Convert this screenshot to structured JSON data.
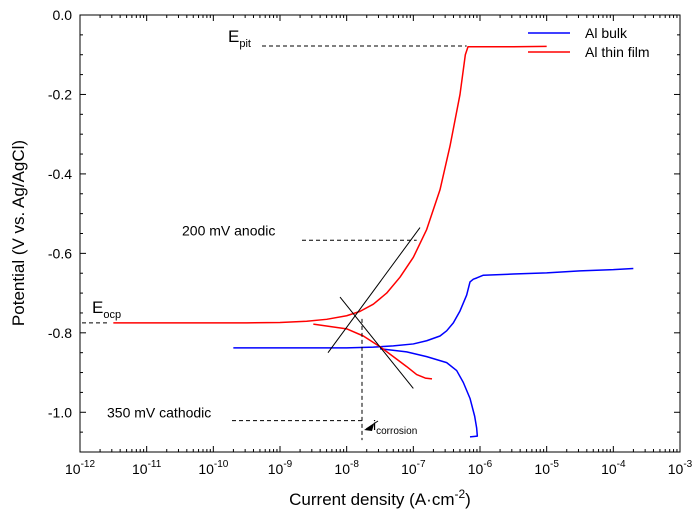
{
  "chart_data": {
    "type": "line",
    "xlabel": {
      "text": "Current density (A·cm",
      "sup": "-2",
      "tail": ")"
    },
    "ylabel": "Potential (V vs. Ag/AgCl)",
    "xscale": "log",
    "xlim_exp": [
      -12,
      -3
    ],
    "ylim": [
      -1.1,
      0.0
    ],
    "x_ticks": [
      {
        "base": "10",
        "exp": "-12"
      },
      {
        "base": "10",
        "exp": "-11"
      },
      {
        "base": "10",
        "exp": "-10"
      },
      {
        "base": "10",
        "exp": "-9"
      },
      {
        "base": "10",
        "exp": "-8"
      },
      {
        "base": "10",
        "exp": "-7"
      },
      {
        "base": "10",
        "exp": "-6"
      },
      {
        "base": "10",
        "exp": "-5"
      },
      {
        "base": "10",
        "exp": "-4"
      },
      {
        "base": "10",
        "exp": "-3"
      }
    ],
    "y_ticks": [
      "0.0",
      "-0.2",
      "-0.4",
      "-0.6",
      "-0.8",
      "-1.0"
    ],
    "y_tick_values": [
      0.0,
      -0.2,
      -0.4,
      -0.6,
      -0.8,
      -1.0
    ],
    "legend_position": "top-right",
    "series": [
      {
        "name": "Al bulk",
        "color": "#0000ff",
        "points": [
          [
            -9.7,
            -0.838
          ],
          [
            -9.0,
            -0.838
          ],
          [
            -8.5,
            -0.838
          ],
          [
            -8.0,
            -0.838
          ],
          [
            -7.6,
            -0.836
          ],
          [
            -7.3,
            -0.833
          ],
          [
            -7.0,
            -0.828
          ],
          [
            -6.8,
            -0.82
          ],
          [
            -6.6,
            -0.808
          ],
          [
            -6.5,
            -0.795
          ],
          [
            -6.4,
            -0.775
          ],
          [
            -6.3,
            -0.745
          ],
          [
            -6.2,
            -0.705
          ],
          [
            -6.15,
            -0.672
          ],
          [
            -6.1,
            -0.665
          ],
          [
            -6.05,
            -0.662
          ],
          [
            -5.95,
            -0.655
          ],
          [
            -5.5,
            -0.652
          ],
          [
            -5.0,
            -0.649
          ],
          [
            -4.5,
            -0.644
          ],
          [
            -4.0,
            -0.641
          ],
          [
            -3.7,
            -0.638
          ]
        ],
        "cathodic": [
          [
            -7.5,
            -0.84
          ],
          [
            -7.1,
            -0.848
          ],
          [
            -6.8,
            -0.86
          ],
          [
            -6.5,
            -0.875
          ],
          [
            -6.35,
            -0.895
          ],
          [
            -6.25,
            -0.925
          ],
          [
            -6.15,
            -0.965
          ],
          [
            -6.08,
            -1.01
          ],
          [
            -6.05,
            -1.04
          ],
          [
            -6.04,
            -1.06
          ],
          [
            -6.15,
            -1.062
          ]
        ]
      },
      {
        "name": "Al thin film",
        "color": "#ff0000",
        "points": [
          [
            -11.5,
            -0.775
          ],
          [
            -11.0,
            -0.775
          ],
          [
            -10.5,
            -0.775
          ],
          [
            -10.0,
            -0.775
          ],
          [
            -9.5,
            -0.775
          ],
          [
            -9.0,
            -0.774
          ],
          [
            -8.6,
            -0.771
          ],
          [
            -8.3,
            -0.766
          ],
          [
            -8.0,
            -0.757
          ],
          [
            -7.8,
            -0.746
          ],
          [
            -7.6,
            -0.728
          ],
          [
            -7.4,
            -0.7
          ],
          [
            -7.2,
            -0.66
          ],
          [
            -7.0,
            -0.61
          ],
          [
            -6.8,
            -0.54
          ],
          [
            -6.6,
            -0.44
          ],
          [
            -6.45,
            -0.33
          ],
          [
            -6.3,
            -0.2
          ],
          [
            -6.22,
            -0.1
          ],
          [
            -6.18,
            -0.08
          ],
          [
            -6.0,
            -0.08
          ],
          [
            -5.5,
            -0.08
          ],
          [
            -5.0,
            -0.079
          ]
        ],
        "cathodic": [
          [
            -8.5,
            -0.778
          ],
          [
            -8.0,
            -0.79
          ],
          [
            -7.75,
            -0.808
          ],
          [
            -7.5,
            -0.835
          ],
          [
            -7.3,
            -0.86
          ],
          [
            -7.1,
            -0.885
          ],
          [
            -6.95,
            -0.905
          ],
          [
            -6.82,
            -0.914
          ],
          [
            -6.72,
            -0.916
          ]
        ]
      }
    ],
    "tafel_lines": [
      {
        "from": [
          -8.28,
          -0.85
        ],
        "to": [
          -6.9,
          -0.535
        ]
      },
      {
        "from": [
          -8.1,
          -0.71
        ],
        "to": [
          -7.0,
          -0.94
        ]
      }
    ],
    "annotations": [
      {
        "text": "E",
        "sub": "pit",
        "y": -0.078,
        "x_line_end": -6.2
      },
      {
        "text": "200 mV anodic",
        "y": -0.567,
        "x_line_end": -6.95
      },
      {
        "text": "E",
        "sub": "ocp",
        "y": -0.775
      },
      {
        "text": "350 mV cathodic",
        "y": -1.021,
        "x_line_end": -7.77
      },
      {
        "text": "i",
        "sub": "corrosion",
        "x_exp": -7.77,
        "y_bottom": -1.07
      }
    ]
  }
}
